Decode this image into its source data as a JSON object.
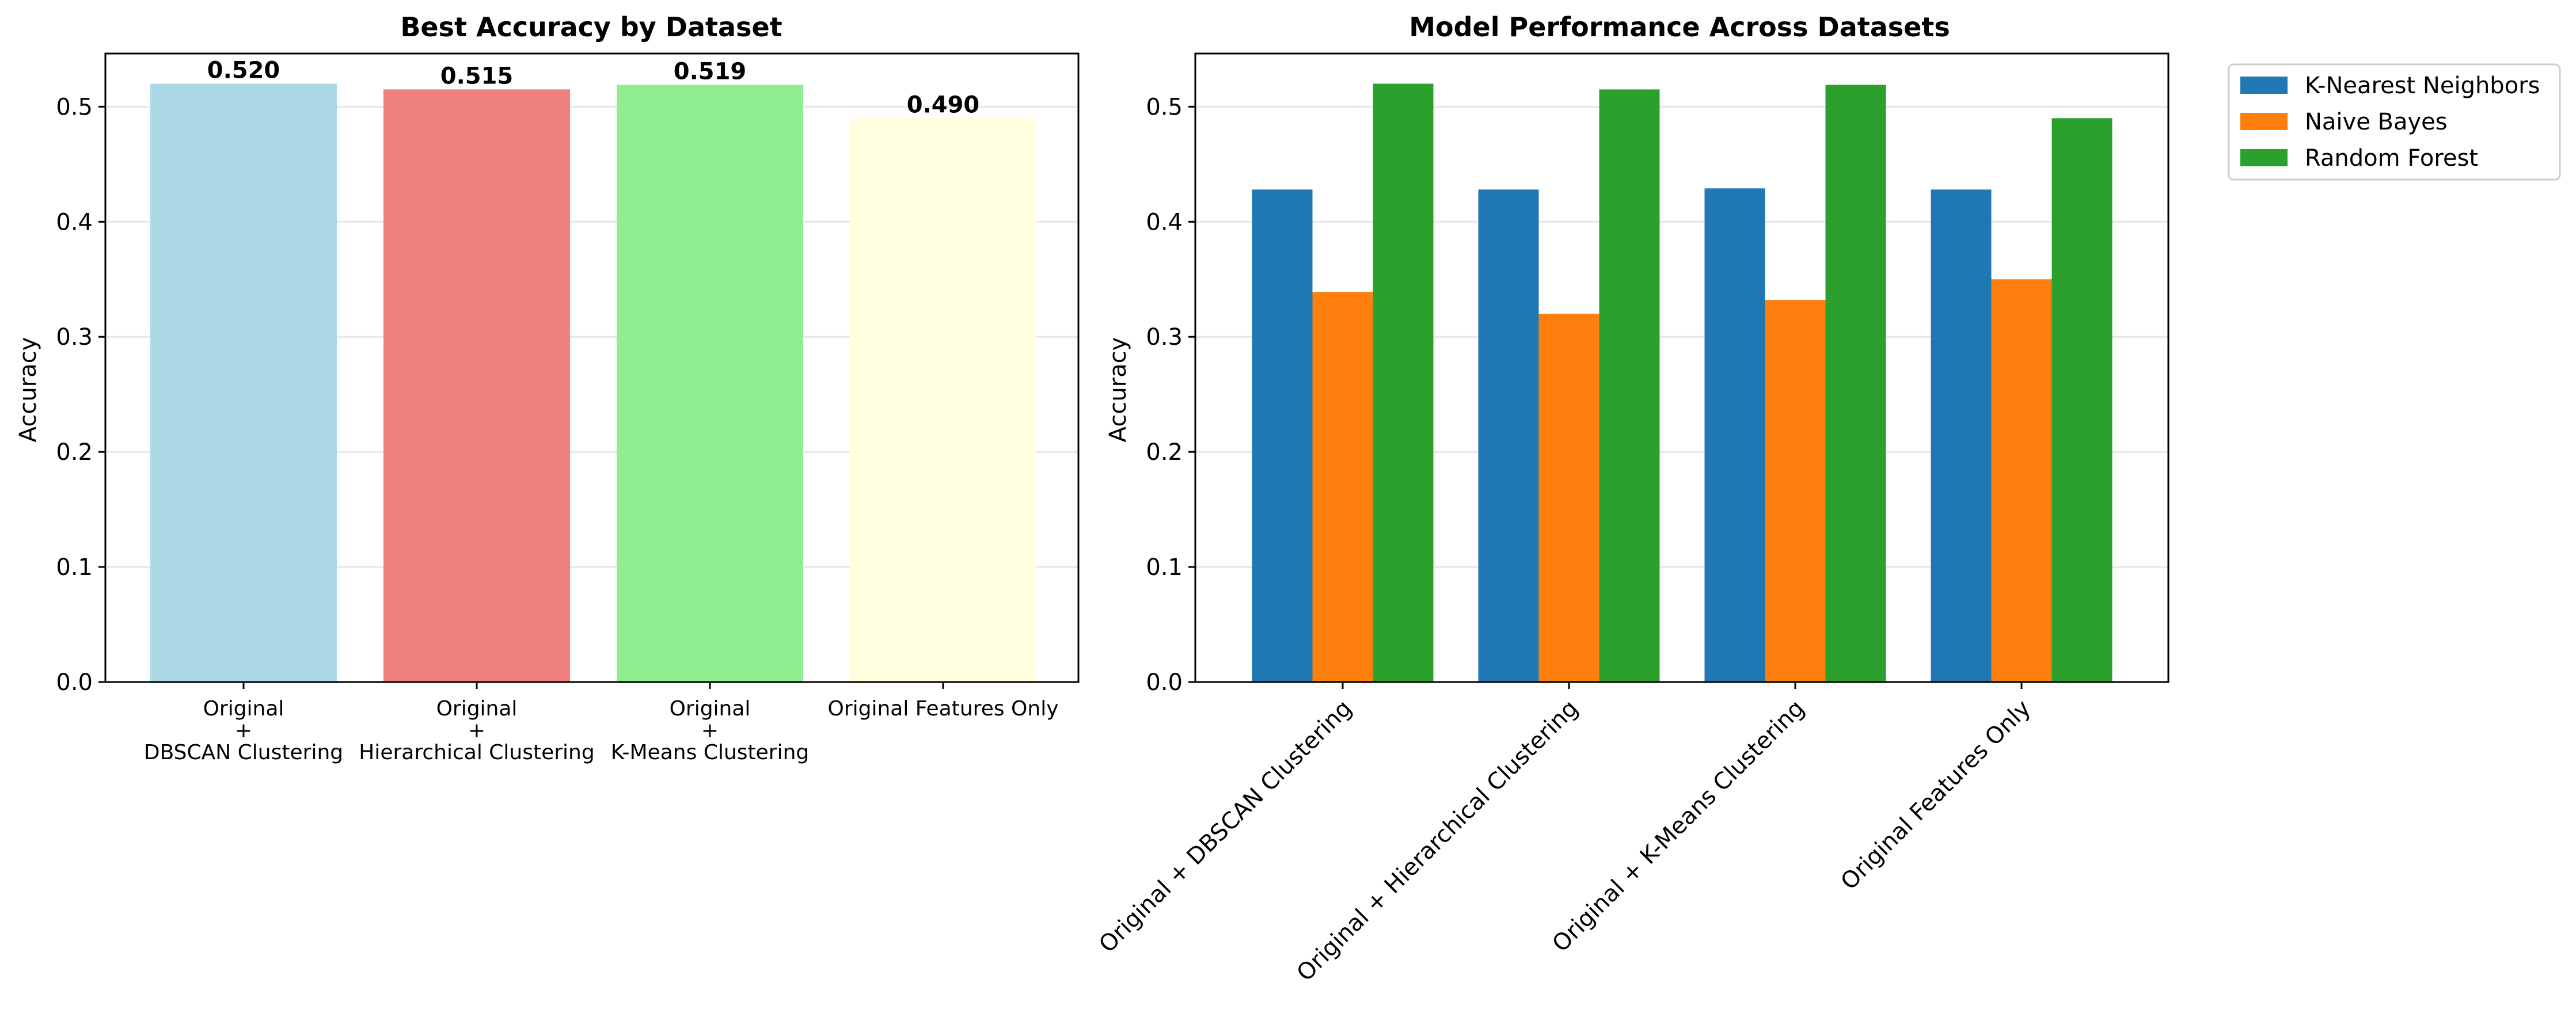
{
  "chart_data": [
    {
      "type": "bar",
      "title": "Best Accuracy by Dataset",
      "xlabel": "",
      "ylabel": "Accuracy",
      "ylim": [
        0,
        0.5462
      ],
      "yticks": [
        "0.0",
        "0.1",
        "0.2",
        "0.3",
        "0.4",
        "0.5"
      ],
      "grid": "y",
      "categories": [
        [
          "Original",
          "+",
          "DBSCAN Clustering"
        ],
        [
          "Original",
          "+",
          "Hierarchical Clustering"
        ],
        [
          "Original",
          "+",
          "K-Means Clustering"
        ],
        [
          "Original Features Only"
        ]
      ],
      "values": [
        0.52,
        0.515,
        0.519,
        0.49
      ],
      "value_labels": [
        "0.520",
        "0.515",
        "0.519",
        "0.490"
      ],
      "colors": [
        "#add8e6",
        "#f08080",
        "#90ee90",
        "#ffffe0"
      ]
    },
    {
      "type": "bar",
      "title": "Model Performance Across Datasets",
      "xlabel": "",
      "ylabel": "Accuracy",
      "ylim": [
        0,
        0.5462
      ],
      "yticks": [
        "0.0",
        "0.1",
        "0.2",
        "0.3",
        "0.4",
        "0.5"
      ],
      "grid": "y",
      "legend_position": "outside-top-right",
      "categories": [
        "Original + DBSCAN Clustering",
        "Original + Hierarchical Clustering",
        "Original + K-Means Clustering",
        "Original Features Only"
      ],
      "series": [
        {
          "name": "K-Nearest Neighbors",
          "color": "#1f77b4",
          "values": [
            0.428,
            0.428,
            0.429,
            0.428
          ]
        },
        {
          "name": "Naive Bayes",
          "color": "#ff7f0e",
          "values": [
            0.339,
            0.32,
            0.332,
            0.35
          ]
        },
        {
          "name": "Random Forest",
          "color": "#2ca02c",
          "values": [
            0.52,
            0.515,
            0.519,
            0.49
          ]
        }
      ]
    }
  ]
}
